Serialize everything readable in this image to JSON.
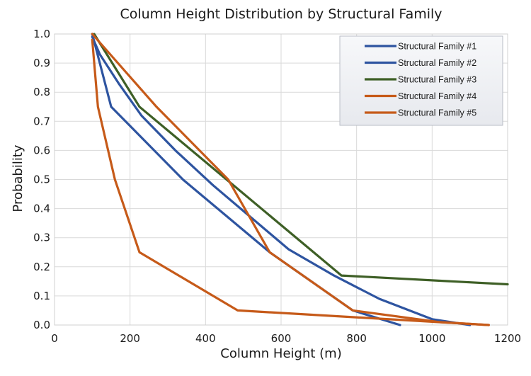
{
  "chart_data": {
    "type": "line",
    "title": "Column Height Distribution by Structural Family",
    "xlabel": "Column Height (m)",
    "ylabel": "Probability",
    "xlim": [
      0,
      1200
    ],
    "ylim": [
      0,
      1.0
    ],
    "x_ticks": [
      "0",
      "200",
      "400",
      "600",
      "800",
      "1000",
      "1200"
    ],
    "y_ticks": [
      "0.0",
      "0.1",
      "0.2",
      "0.3",
      "0.4",
      "0.5",
      "0.6",
      "0.7",
      "0.8",
      "0.9",
      "1.0"
    ],
    "grid": true,
    "legend_position": "top-right",
    "series": [
      {
        "name": "Structural Family #1",
        "color": "#2e54a0",
        "points": [
          [
            100,
            1.0
          ],
          [
            150,
            0.75
          ],
          [
            340,
            0.5
          ],
          [
            570,
            0.25
          ],
          [
            790,
            0.05
          ],
          [
            915,
            0.0
          ]
        ]
      },
      {
        "name": "Structural Family #2",
        "color": "#2e54a0",
        "points": [
          [
            100,
            0.99
          ],
          [
            120,
            0.93
          ],
          [
            170,
            0.83
          ],
          [
            230,
            0.72
          ],
          [
            320,
            0.6
          ],
          [
            420,
            0.48
          ],
          [
            520,
            0.37
          ],
          [
            620,
            0.26
          ],
          [
            740,
            0.17
          ],
          [
            860,
            0.09
          ],
          [
            1000,
            0.02
          ],
          [
            1100,
            0.0
          ]
        ]
      },
      {
        "name": "Structural Family #3",
        "color": "#3e5f26",
        "points": [
          [
            105,
            1.0
          ],
          [
            225,
            0.75
          ],
          [
            760,
            0.17
          ],
          [
            1200,
            0.14
          ]
        ]
      },
      {
        "name": "Structural Family #4",
        "color": "#c65a19",
        "points": [
          [
            100,
            1.0
          ],
          [
            270,
            0.75
          ],
          [
            460,
            0.5
          ],
          [
            570,
            0.25
          ],
          [
            790,
            0.05
          ],
          [
            1020,
            0.01
          ],
          [
            1150,
            0.0
          ]
        ]
      },
      {
        "name": "Structural Family #5",
        "color": "#c65a19",
        "points": [
          [
            100,
            0.98
          ],
          [
            115,
            0.75
          ],
          [
            160,
            0.5
          ],
          [
            225,
            0.25
          ],
          [
            485,
            0.05
          ],
          [
            1150,
            0.0
          ]
        ]
      }
    ]
  }
}
